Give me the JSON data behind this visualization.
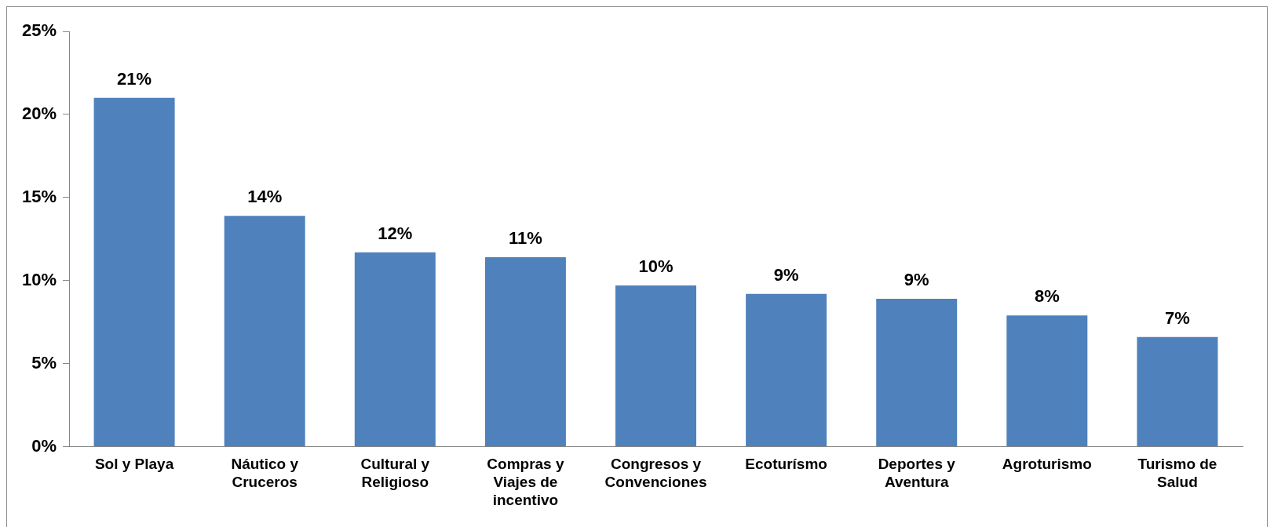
{
  "chart_data": {
    "type": "bar",
    "categories": [
      "Sol y Playa",
      "Náutico y Cruceros",
      "Cultural y Religioso",
      "Compras y Viajes de incentivo",
      "Congresos y Convenciones",
      "Ecoturísmo",
      "Deportes y Aventura",
      "Agroturismo",
      "Turismo de Salud"
    ],
    "values": [
      21,
      13.9,
      11.7,
      11.4,
      9.7,
      9.2,
      8.9,
      7.9,
      6.6
    ],
    "value_labels": [
      "21%",
      "14%",
      "12%",
      "11%",
      "10%",
      "9%",
      "9%",
      "8%",
      "7%"
    ],
    "color": "#4f81bd",
    "ylim": [
      0,
      25
    ],
    "yticks": [
      {
        "value": 0,
        "label": "0%"
      },
      {
        "value": 5,
        "label": "5%"
      },
      {
        "value": 10,
        "label": "10%"
      },
      {
        "value": 15,
        "label": "15%"
      },
      {
        "value": 20,
        "label": "20%"
      },
      {
        "value": 25,
        "label": "25%"
      }
    ],
    "grid": false,
    "legend": false
  }
}
